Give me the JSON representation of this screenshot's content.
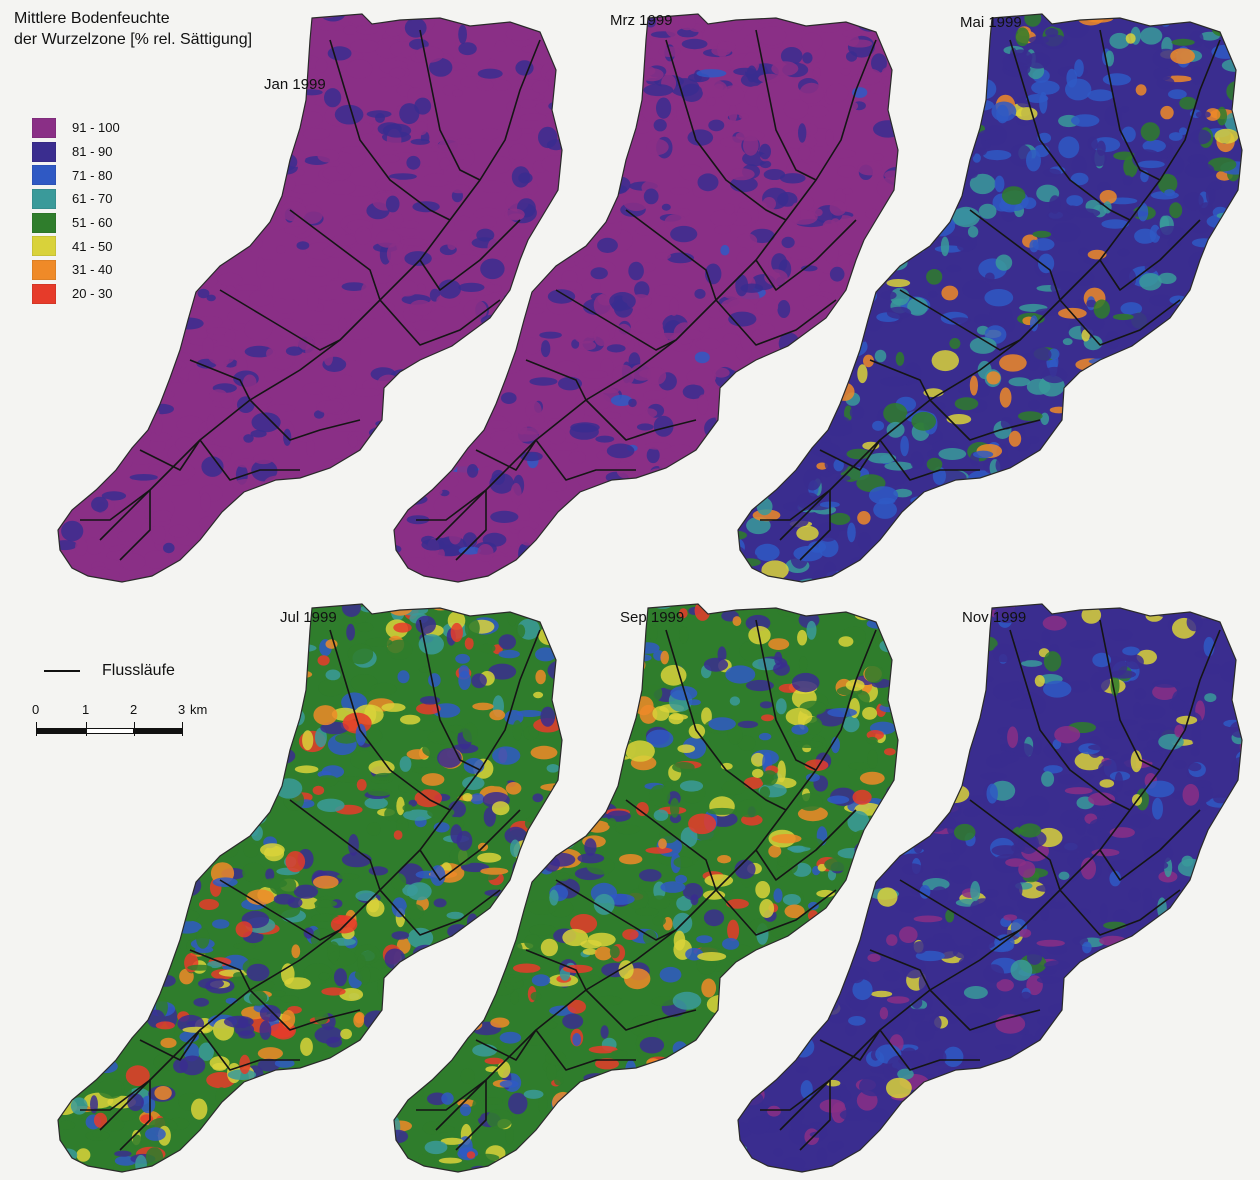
{
  "title": {
    "line1": "Mittlere Bodenfeuchte",
    "line2": "der Wurzelzone [% rel. Sättigung]"
  },
  "legend": [
    {
      "label": "91 - 100",
      "color": "#8a2f86"
    },
    {
      "label": "81 - 90",
      "color": "#3a2d8f"
    },
    {
      "label": "71 - 80",
      "color": "#2f59c4"
    },
    {
      "label": "61 - 70",
      "color": "#3a9a9a"
    },
    {
      "label": "51 - 60",
      "color": "#2f7d2c"
    },
    {
      "label": "41 - 50",
      "color": "#d9d23a"
    },
    {
      "label": "31 - 40",
      "color": "#ef8a28"
    },
    {
      "label": "20 - 30",
      "color": "#e63b2a"
    }
  ],
  "rivers_label": "Flussläufe",
  "scale": {
    "ticks": [
      "0",
      "1",
      "2",
      "3"
    ],
    "unit": "km"
  },
  "panels": [
    {
      "title": "Jan 1999",
      "mix": {
        "91 - 100": 0.75,
        "81 - 90": 0.25
      }
    },
    {
      "title": "Mrz 1999",
      "mix": {
        "91 - 100": 0.65,
        "81 - 90": 0.33,
        "71 - 80": 0.02
      }
    },
    {
      "title": "Mai 1999",
      "mix": {
        "81 - 90": 0.38,
        "71 - 80": 0.22,
        "61 - 70": 0.18,
        "51 - 60": 0.12,
        "41 - 50": 0.04,
        "31 - 40": 0.06
      }
    },
    {
      "title": "Jul 1999",
      "mix": {
        "81 - 90": 0.18,
        "71 - 80": 0.12,
        "61 - 70": 0.1,
        "51 - 60": 0.28,
        "41 - 50": 0.14,
        "31 - 40": 0.08,
        "20 - 30": 0.1
      }
    },
    {
      "title": "Sep 1999",
      "mix": {
        "81 - 90": 0.16,
        "71 - 80": 0.12,
        "61 - 70": 0.1,
        "51 - 60": 0.32,
        "41 - 50": 0.14,
        "31 - 40": 0.08,
        "20 - 30": 0.08
      }
    },
    {
      "title": "Nov 1999",
      "mix": {
        "91 - 100": 0.15,
        "81 - 90": 0.6,
        "71 - 80": 0.13,
        "61 - 70": 0.04,
        "51 - 60": 0.03,
        "41 - 50": 0.05
      }
    }
  ]
}
